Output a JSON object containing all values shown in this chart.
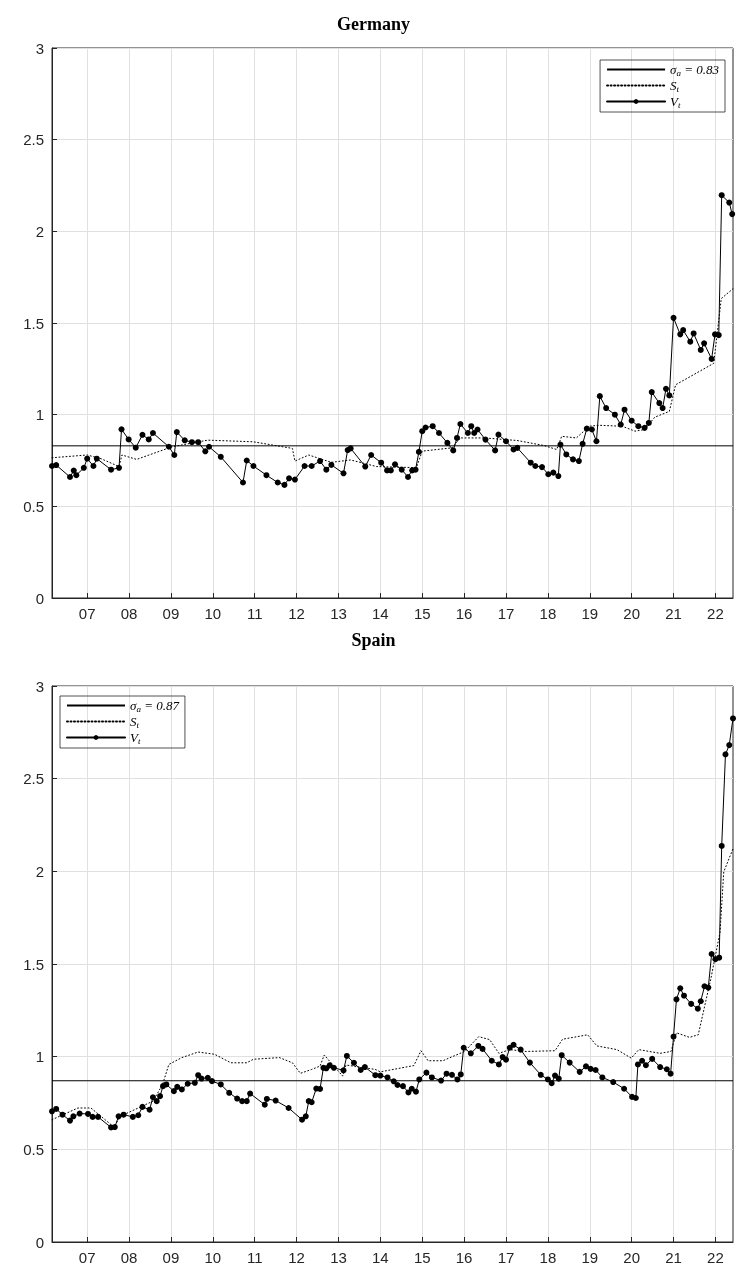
{
  "chart_data": [
    {
      "type": "line",
      "title": "Germany",
      "legend": "top right",
      "grid": true,
      "xlim": [
        2006.16,
        2022.42
      ],
      "xticks": [
        {
          "value": 2007,
          "label": "07"
        },
        {
          "value": 2008,
          "label": "08"
        },
        {
          "value": 2009,
          "label": "09"
        },
        {
          "value": 2010,
          "label": "10"
        },
        {
          "value": 2011,
          "label": "11"
        },
        {
          "value": 2012,
          "label": "12"
        },
        {
          "value": 2013,
          "label": "13"
        },
        {
          "value": 2014,
          "label": "14"
        },
        {
          "value": 2015,
          "label": "15"
        },
        {
          "value": 2016,
          "label": "16"
        },
        {
          "value": 2017,
          "label": "17"
        },
        {
          "value": 2018,
          "label": "18"
        },
        {
          "value": 2019,
          "label": "19"
        },
        {
          "value": 2020,
          "label": "20"
        },
        {
          "value": 2021,
          "label": "21"
        },
        {
          "value": 2022,
          "label": "22"
        }
      ],
      "ylim": [
        0,
        3
      ],
      "yticks": [
        0,
        0.5,
        1,
        1.5,
        2,
        2.5,
        3
      ],
      "ref_lines": [
        {
          "axis": "y",
          "value": 0.83,
          "label": "σ$_{a}$ = 0.83",
          "color": "#000000",
          "line_style": "solid"
        }
      ],
      "series": [
        {
          "name": "S$_{t}$",
          "color": "#000000",
          "marker": "none",
          "line_style": "dotted",
          "x": [
            2006.16,
            2007.0,
            2007.33,
            2007.76,
            2007.83,
            2008.18,
            2009.03,
            2009.88,
            2010.97,
            2011.9,
            2011.96,
            2012.29,
            2012.83,
            2013.29,
            2013.91,
            2014.86,
            2015.0,
            2015.71,
            2015.91,
            2016.49,
            2017.27,
            2017.9,
            2018.21,
            2018.33,
            2018.68,
            2018.99,
            2019.22,
            2019.77,
            2020.08,
            2020.31,
            2020.55,
            2020.9,
            2021.05,
            2021.96,
            2022.14,
            2022.42
          ],
          "values": [
            0.765,
            0.78,
            0.76,
            0.717,
            0.78,
            0.756,
            0.825,
            0.861,
            0.852,
            0.816,
            0.747,
            0.78,
            0.74,
            0.753,
            0.717,
            0.711,
            0.801,
            0.819,
            0.873,
            0.873,
            0.859,
            0.832,
            0.81,
            0.882,
            0.873,
            0.937,
            0.942,
            0.937,
            0.91,
            0.919,
            0.986,
            1.018,
            1.163,
            1.28,
            1.633,
            1.687
          ]
        },
        {
          "name": "V$_{t}$",
          "color": "#000000",
          "marker": "circle",
          "line_style": "solid",
          "x": [
            2006.16,
            2006.26,
            2006.59,
            2006.68,
            2006.74,
            2006.92,
            2007.0,
            2007.15,
            2007.23,
            2007.57,
            2007.76,
            2007.82,
            2007.99,
            2008.16,
            2008.32,
            2008.47,
            2008.57,
            2008.95,
            2009.08,
            2009.14,
            2009.33,
            2009.5,
            2009.65,
            2009.82,
            2009.91,
            2010.19,
            2010.72,
            2010.81,
            2010.97,
            2011.28,
            2011.55,
            2011.71,
            2011.82,
            2011.96,
            2012.19,
            2012.36,
            2012.56,
            2012.71,
            2012.83,
            2013.12,
            2013.22,
            2013.29,
            2013.64,
            2013.78,
            2014.02,
            2014.16,
            2014.25,
            2014.35,
            2014.51,
            2014.66,
            2014.76,
            2014.84,
            2014.92,
            2015.0,
            2015.08,
            2015.25,
            2015.4,
            2015.6,
            2015.74,
            2015.83,
            2015.91,
            2016.09,
            2016.17,
            2016.24,
            2016.32,
            2016.51,
            2016.74,
            2016.82,
            2017.0,
            2017.18,
            2017.27,
            2017.59,
            2017.7,
            2017.86,
            2018.01,
            2018.13,
            2018.25,
            2018.3,
            2018.44,
            2018.6,
            2018.74,
            2018.83,
            2018.93,
            2019.05,
            2019.16,
            2019.24,
            2019.39,
            2019.6,
            2019.74,
            2019.83,
            2020.0,
            2020.16,
            2020.31,
            2020.41,
            2020.48,
            2020.66,
            2020.74,
            2020.82,
            2020.9,
            2021.0,
            2021.16,
            2021.23,
            2021.4,
            2021.48,
            2021.65,
            2021.73,
            2021.91,
            2021.99,
            2022.08,
            2022.15,
            2022.33,
            2022.4
          ],
          "values": [
            0.72,
            0.725,
            0.66,
            0.695,
            0.67,
            0.71,
            0.76,
            0.72,
            0.76,
            0.7,
            0.71,
            0.92,
            0.865,
            0.82,
            0.89,
            0.865,
            0.9,
            0.825,
            0.78,
            0.905,
            0.86,
            0.85,
            0.85,
            0.8,
            0.825,
            0.77,
            0.63,
            0.75,
            0.72,
            0.67,
            0.63,
            0.617,
            0.653,
            0.646,
            0.72,
            0.72,
            0.747,
            0.7,
            0.726,
            0.68,
            0.807,
            0.816,
            0.717,
            0.78,
            0.738,
            0.696,
            0.696,
            0.729,
            0.7,
            0.66,
            0.696,
            0.7,
            0.797,
            0.91,
            0.93,
            0.937,
            0.9,
            0.846,
            0.805,
            0.873,
            0.949,
            0.9,
            0.937,
            0.9,
            0.919,
            0.864,
            0.805,
            0.891,
            0.855,
            0.81,
            0.819,
            0.738,
            0.72,
            0.714,
            0.675,
            0.684,
            0.665,
            0.837,
            0.783,
            0.756,
            0.747,
            0.841,
            0.924,
            0.919,
            0.855,
            1.101,
            1.036,
            1.0,
            0.946,
            1.027,
            0.967,
            0.937,
            0.928,
            0.955,
            1.123,
            1.063,
            1.036,
            1.141,
            1.105,
            1.528,
            1.438,
            1.461,
            1.398,
            1.443,
            1.353,
            1.389,
            1.304,
            1.438,
            1.434,
            2.197,
            2.157,
            2.094
          ]
        }
      ]
    },
    {
      "type": "line",
      "title": "Spain",
      "legend": "top left",
      "grid": true,
      "xlim": [
        2006.16,
        2022.42
      ],
      "xticks": [
        {
          "value": 2007,
          "label": "07"
        },
        {
          "value": 2008,
          "label": "08"
        },
        {
          "value": 2009,
          "label": "09"
        },
        {
          "value": 2010,
          "label": "10"
        },
        {
          "value": 2011,
          "label": "11"
        },
        {
          "value": 2012,
          "label": "12"
        },
        {
          "value": 2013,
          "label": "13"
        },
        {
          "value": 2014,
          "label": "14"
        },
        {
          "value": 2015,
          "label": "15"
        },
        {
          "value": 2016,
          "label": "16"
        },
        {
          "value": 2017,
          "label": "17"
        },
        {
          "value": 2018,
          "label": "18"
        },
        {
          "value": 2019,
          "label": "19"
        },
        {
          "value": 2020,
          "label": "20"
        },
        {
          "value": 2021,
          "label": "21"
        },
        {
          "value": 2022,
          "label": "22"
        }
      ],
      "ylim": [
        0,
        3
      ],
      "yticks": [
        0,
        0.5,
        1,
        1.5,
        2,
        2.5,
        3
      ],
      "ref_lines": [
        {
          "axis": "y",
          "value": 0.87,
          "label": "σ$_{a}$ = 0.87",
          "color": "#000000",
          "line_style": "solid"
        }
      ],
      "series": [
        {
          "name": "S$_{t}$",
          "color": "#000000",
          "marker": "none",
          "line_style": "dotted",
          "x": [
            2006.16,
            2006.78,
            2007.09,
            2007.33,
            2007.64,
            2007.79,
            2008.57,
            2008.8,
            2008.95,
            2009.26,
            2009.65,
            2010.04,
            2010.43,
            2010.81,
            2010.97,
            2011.59,
            2011.9,
            2012.09,
            2012.36,
            2012.56,
            2012.66,
            2013.1,
            2013.18,
            2013.88,
            2014.0,
            2014.8,
            2014.97,
            2015.14,
            2015.49,
            2016.01,
            2016.35,
            2016.61,
            2016.83,
            2017.09,
            2017.48,
            2018.17,
            2018.35,
            2018.95,
            2019.17,
            2019.65,
            2019.99,
            2020.17,
            2020.68,
            2020.94,
            2021.07,
            2021.38,
            2021.59,
            2021.9,
            2022.11,
            2022.2,
            2022.42
          ],
          "values": [
            0.66,
            0.723,
            0.723,
            0.678,
            0.62,
            0.678,
            0.76,
            0.85,
            0.958,
            0.995,
            1.025,
            1.013,
            0.967,
            0.967,
            0.986,
            0.995,
            0.967,
            0.91,
            0.931,
            0.949,
            1.009,
            0.895,
            0.955,
            0.931,
            0.918,
            0.952,
            1.032,
            0.978,
            0.978,
            1.028,
            1.108,
            1.092,
            1.018,
            1.038,
            1.028,
            1.032,
            1.094,
            1.118,
            1.058,
            1.038,
            0.992,
            1.038,
            1.018,
            1.028,
            1.129,
            1.104,
            1.118,
            1.43,
            1.671,
            1.998,
            2.122
          ]
        },
        {
          "name": "V$_{t}$",
          "color": "#000000",
          "marker": "circle",
          "line_style": "solid",
          "x": [
            2006.16,
            2006.26,
            2006.41,
            2006.59,
            2006.67,
            2006.82,
            2007.02,
            2007.13,
            2007.26,
            2007.57,
            2007.66,
            2007.75,
            2007.87,
            2008.09,
            2008.22,
            2008.32,
            2008.49,
            2008.57,
            2008.66,
            2008.74,
            2008.81,
            2008.89,
            2009.07,
            2009.15,
            2009.26,
            2009.4,
            2009.57,
            2009.65,
            2009.73,
            2009.88,
            2009.98,
            2010.19,
            2010.39,
            2010.58,
            2010.7,
            2010.81,
            2010.89,
            2011.24,
            2011.29,
            2011.5,
            2011.81,
            2012.13,
            2012.22,
            2012.29,
            2012.36,
            2012.47,
            2012.56,
            2012.64,
            2012.71,
            2012.79,
            2012.89,
            2013.12,
            2013.2,
            2013.37,
            2013.53,
            2013.63,
            2013.88,
            2014.0,
            2014.17,
            2014.32,
            2014.41,
            2014.54,
            2014.67,
            2014.75,
            2014.85,
            2014.93,
            2015.1,
            2015.23,
            2015.45,
            2015.58,
            2015.71,
            2015.84,
            2015.92,
            2015.99,
            2016.16,
            2016.34,
            2016.44,
            2016.66,
            2016.83,
            2016.92,
            2017.0,
            2017.09,
            2017.18,
            2017.35,
            2017.57,
            2017.83,
            2018.0,
            2018.09,
            2018.17,
            2018.26,
            2018.33,
            2018.52,
            2018.76,
            2018.91,
            2019.02,
            2019.14,
            2019.3,
            2019.56,
            2019.82,
            2020.01,
            2020.1,
            2020.15,
            2020.25,
            2020.34,
            2020.49,
            2020.68,
            2020.84,
            2020.93,
            2021.0,
            2021.07,
            2021.16,
            2021.25,
            2021.42,
            2021.58,
            2021.65,
            2021.74,
            2021.83,
            2021.91,
            2022.0,
            2022.09,
            2022.15,
            2022.24,
            2022.33,
            2022.42
          ],
          "values": [
            0.705,
            0.718,
            0.687,
            0.655,
            0.678,
            0.693,
            0.691,
            0.675,
            0.675,
            0.618,
            0.62,
            0.678,
            0.687,
            0.675,
            0.684,
            0.729,
            0.714,
            0.781,
            0.76,
            0.787,
            0.841,
            0.85,
            0.814,
            0.837,
            0.823,
            0.854,
            0.859,
            0.9,
            0.882,
            0.886,
            0.868,
            0.85,
            0.805,
            0.774,
            0.76,
            0.76,
            0.801,
            0.741,
            0.772,
            0.763,
            0.723,
            0.66,
            0.678,
            0.76,
            0.754,
            0.828,
            0.826,
            0.94,
            0.937,
            0.953,
            0.94,
            0.926,
            1.004,
            0.967,
            0.928,
            0.944,
            0.9,
            0.898,
            0.888,
            0.867,
            0.847,
            0.841,
            0.807,
            0.827,
            0.811,
            0.877,
            0.914,
            0.888,
            0.871,
            0.908,
            0.902,
            0.877,
            0.904,
            1.048,
            1.018,
            1.058,
            1.042,
            0.978,
            0.958,
            0.998,
            0.984,
            1.048,
            1.064,
            1.038,
            0.968,
            0.902,
            0.877,
            0.857,
            0.898,
            0.881,
            1.008,
            0.968,
            0.918,
            0.948,
            0.934,
            0.928,
            0.888,
            0.863,
            0.827,
            0.783,
            0.777,
            0.958,
            0.978,
            0.954,
            0.988,
            0.944,
            0.932,
            0.908,
            1.108,
            1.309,
            1.369,
            1.329,
            1.285,
            1.259,
            1.299,
            1.38,
            1.373,
            1.554,
            1.526,
            1.534,
            2.137,
            2.631,
            2.681,
            2.825
          ]
        }
      ]
    }
  ]
}
